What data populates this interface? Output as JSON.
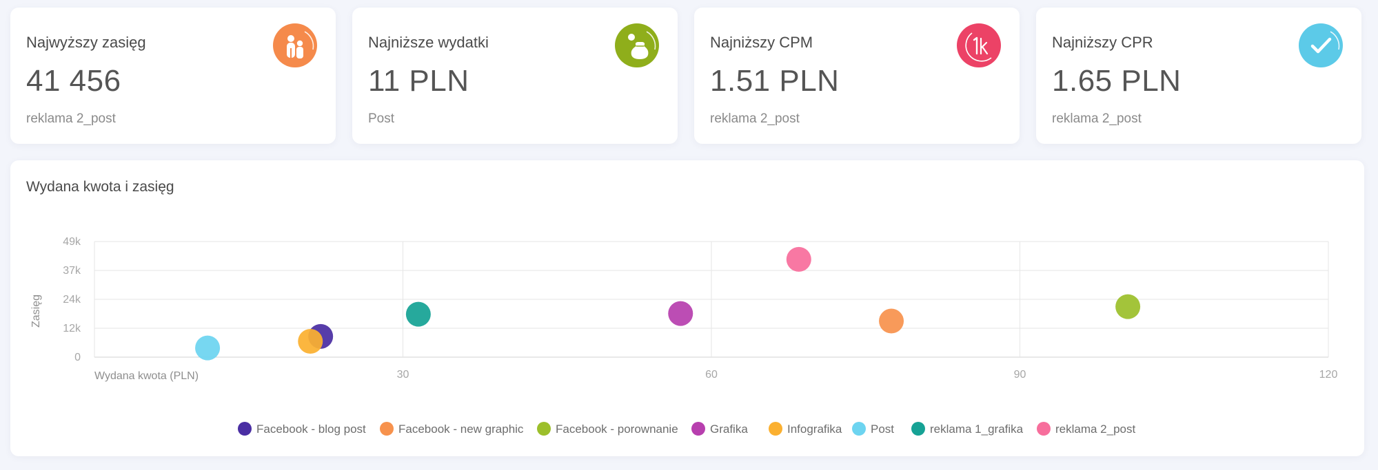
{
  "kpis": [
    {
      "title": "Najwyższy zasięg",
      "value": "41 456",
      "sub": "reklama 2_post",
      "icon": "people-icon",
      "color": "#f58a4b"
    },
    {
      "title": "Najniższe wydatki",
      "value": "11 PLN",
      "sub": "Post",
      "icon": "money-bag-icon",
      "color": "#8fae1b"
    },
    {
      "title": "Najniższy CPM",
      "value": "1.51 PLN",
      "sub": "reklama 2_post",
      "icon": "1k-icon",
      "color": "#ec4266"
    },
    {
      "title": "Najniższy CPR",
      "value": "1.65 PLN",
      "sub": "reklama 2_post",
      "icon": "check-icon",
      "color": "#5ccae8"
    }
  ],
  "chart": {
    "title": "Wydana kwota i zasięg"
  },
  "chart_data": {
    "type": "scatter",
    "xlabel": "Wydana kwota (PLN)",
    "ylabel": "Zasięg",
    "xlim": [
      0,
      120
    ],
    "ylim": [
      0,
      49000
    ],
    "x_ticks": [
      30,
      60,
      90,
      120
    ],
    "x_tick_labels": [
      "30",
      "60",
      "90",
      "120"
    ],
    "y_ticks": [
      0,
      12250,
      24500,
      36750,
      49000
    ],
    "y_tick_labels": [
      "0",
      "12k",
      "24k",
      "37k",
      "49k"
    ],
    "grid": true,
    "legend_position": "bottom",
    "series": [
      {
        "name": "Facebook - blog post",
        "color": "#4a2ea3",
        "x": 22,
        "y": 8800
      },
      {
        "name": "Facebook - new graphic",
        "color": "#f7924d",
        "x": 77.5,
        "y": 15300
      },
      {
        "name": "Facebook - porownanie",
        "color": "#9cbf2b",
        "x": 100.5,
        "y": 21400
      },
      {
        "name": "Grafika",
        "color": "#b73fae",
        "x": 57,
        "y": 18500
      },
      {
        "name": "Infografika",
        "color": "#fbb030",
        "x": 21,
        "y": 6700
      },
      {
        "name": "Post",
        "color": "#6dd4f0",
        "x": 11,
        "y": 3900
      },
      {
        "name": "reklama 1_grafika",
        "color": "#16a295",
        "x": 31.5,
        "y": 18200
      },
      {
        "name": "reklama 2_post",
        "color": "#f76e9c",
        "x": 68.5,
        "y": 41456
      }
    ]
  }
}
